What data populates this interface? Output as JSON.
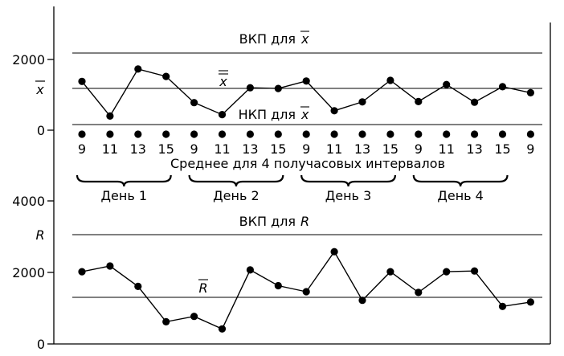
{
  "chart_data": [
    {
      "type": "line",
      "name": "xbar",
      "ylim": [
        0,
        2000
      ],
      "y_ticks": [
        "2000",
        "0"
      ],
      "center_symbol": "x",
      "center_line_value": 1200,
      "ucl_value": 2200,
      "lcl_value": 150,
      "ucl_label": "ВКП для",
      "ucl_symbol": "x",
      "lcl_label": "НКП для",
      "lcl_symbol": "x",
      "center_label_symbol": "x",
      "values": [
        1380,
        400,
        1730,
        1520,
        780,
        440,
        1200,
        1180,
        1390,
        550,
        800,
        1410,
        810,
        1290,
        790,
        1230,
        1060
      ]
    },
    {
      "type": "line",
      "name": "range",
      "ylim": [
        0,
        4000
      ],
      "y_ticks": [
        "4000",
        "2000",
        "0"
      ],
      "axis_symbol": "R",
      "center_line_value": 1290,
      "ucl_value": 3050,
      "ucl_label": "ВКП для",
      "ucl_symbol": "R",
      "center_label_symbol": "R",
      "values": [
        2020,
        2180,
        1610,
        620,
        770,
        420,
        2070,
        1630,
        1460,
        2580,
        1220,
        2020,
        1440,
        2020,
        2040,
        1050,
        1170
      ]
    }
  ],
  "sample_times": [
    "9",
    "11",
    "13",
    "15",
    "9",
    "11",
    "13",
    "15",
    "9",
    "11",
    "13",
    "15",
    "9",
    "11",
    "13",
    "15",
    "9"
  ],
  "interval_caption": "Среднее для 4 получасовых интервалов",
  "days": [
    "День 1",
    "День 2",
    "День 3",
    "День 4"
  ]
}
